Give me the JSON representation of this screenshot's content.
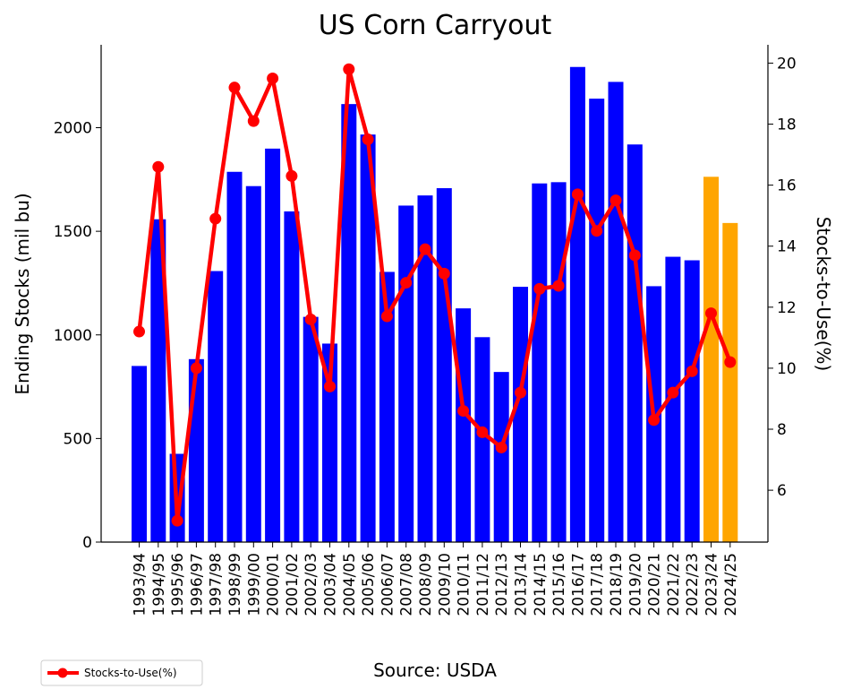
{
  "chart_data": {
    "type": "bar",
    "title": "US Corn Carryout",
    "ylabel": "Ending Stocks (mil bu)",
    "y2label": "Stocks-to-Use(%)",
    "source": "Source: USDA",
    "ylim": [
      0,
      2400
    ],
    "y2lim": [
      4.3,
      20.6
    ],
    "yticks": [
      0,
      500,
      1000,
      1500,
      2000
    ],
    "y2ticks": [
      6,
      8,
      10,
      12,
      14,
      16,
      18,
      20
    ],
    "grid": false,
    "categories": [
      "1993/94",
      "1994/95",
      "1995/96",
      "1996/97",
      "1997/98",
      "1998/99",
      "1999/00",
      "2000/01",
      "2001/02",
      "2002/03",
      "2003/04",
      "2004/05",
      "2005/06",
      "2006/07",
      "2007/08",
      "2008/09",
      "2009/10",
      "2010/11",
      "2011/12",
      "2012/13",
      "2013/14",
      "2014/15",
      "2015/16",
      "2016/17",
      "2017/18",
      "2018/19",
      "2019/20",
      "2020/21",
      "2021/22",
      "2022/23",
      "2023/24",
      "2024/25"
    ],
    "series": [
      {
        "kind": "bar",
        "axis": "left",
        "values": [
          850,
          1558,
          426,
          883,
          1308,
          1787,
          1718,
          1899,
          1596,
          1087,
          958,
          2114,
          1967,
          1304,
          1624,
          1673,
          1708,
          1128,
          989,
          821,
          1232,
          1731,
          1737,
          2293,
          2140,
          2221,
          1919,
          1235,
          1377,
          1360,
          1763,
          1540
        ],
        "colors": [
          "#0000ff",
          "#0000ff",
          "#0000ff",
          "#0000ff",
          "#0000ff",
          "#0000ff",
          "#0000ff",
          "#0000ff",
          "#0000ff",
          "#0000ff",
          "#0000ff",
          "#0000ff",
          "#0000ff",
          "#0000ff",
          "#0000ff",
          "#0000ff",
          "#0000ff",
          "#0000ff",
          "#0000ff",
          "#0000ff",
          "#0000ff",
          "#0000ff",
          "#0000ff",
          "#0000ff",
          "#0000ff",
          "#0000ff",
          "#0000ff",
          "#0000ff",
          "#0000ff",
          "#0000ff",
          "#ffa500",
          "#ffa500"
        ]
      },
      {
        "kind": "line",
        "axis": "right",
        "name": "Stocks-to-Use(%)",
        "color": "#ff0000",
        "values": [
          11.2,
          16.6,
          5.0,
          10.0,
          14.9,
          19.2,
          18.1,
          19.5,
          16.3,
          11.6,
          9.4,
          19.8,
          17.5,
          11.7,
          12.8,
          13.9,
          13.1,
          8.6,
          7.9,
          7.4,
          9.2,
          12.6,
          12.7,
          15.7,
          14.5,
          15.5,
          13.7,
          8.3,
          9.2,
          9.9,
          11.8,
          10.2
        ]
      }
    ],
    "legend": {
      "position": "bottom-left",
      "label": "Stocks-to-Use(%)"
    }
  }
}
